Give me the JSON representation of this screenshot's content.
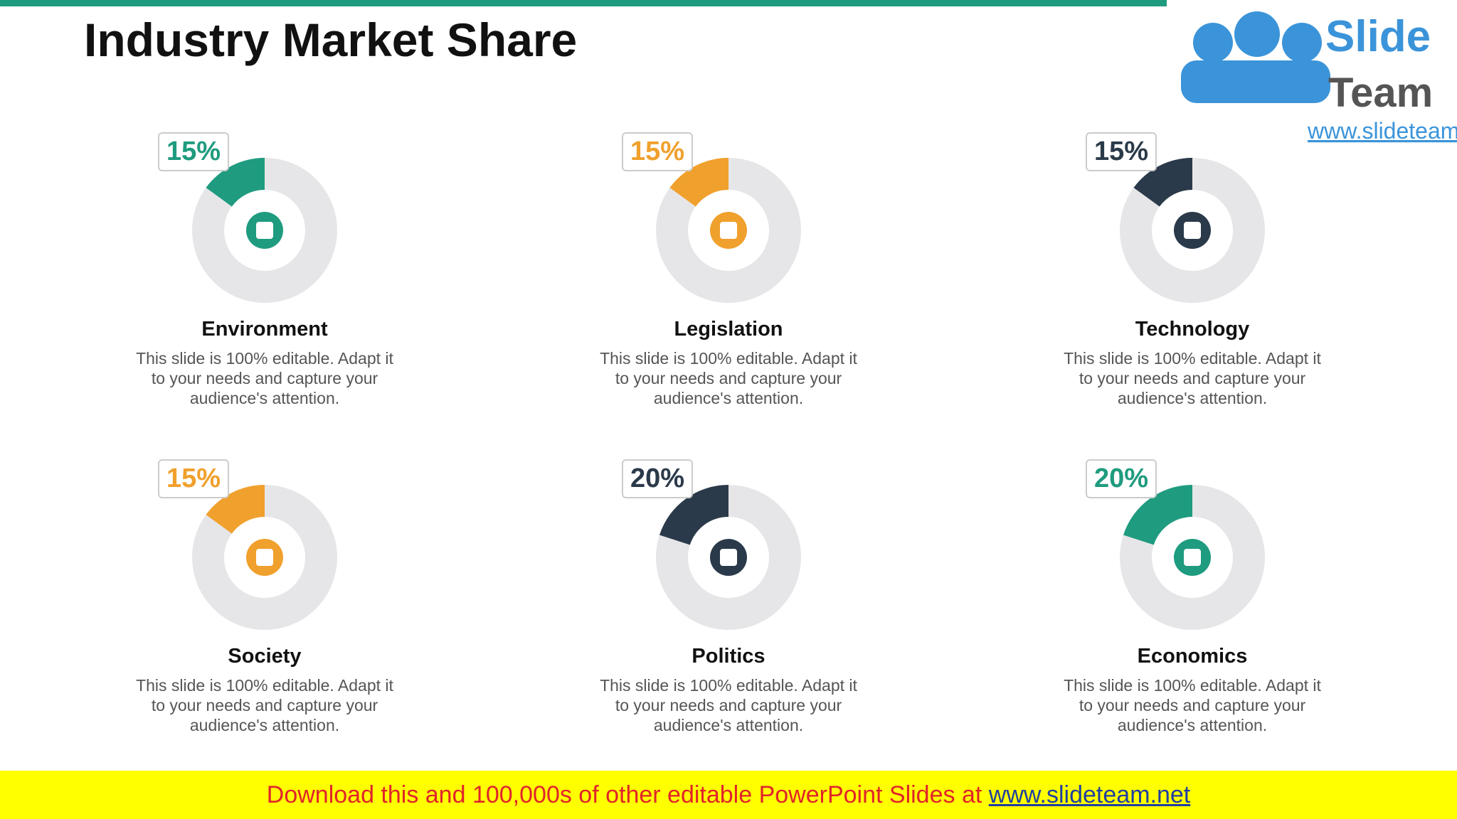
{
  "title": "Industry Market Share",
  "logo": {
    "brand_top": "Slide",
    "brand_bottom": "Team",
    "url": "www.slideteam.net"
  },
  "chart_data": [
    {
      "type": "donut",
      "title": "Environment",
      "values": [
        15
      ],
      "value_labels": [
        "15%"
      ],
      "color": "#1f9b7f",
      "ylim": [
        0,
        100
      ],
      "description": "This slide is 100% editable. Adapt it to your needs and capture your audience's attention."
    },
    {
      "type": "donut",
      "title": "Legislation",
      "values": [
        15
      ],
      "value_labels": [
        "15%"
      ],
      "color": "#f0a02c",
      "ylim": [
        0,
        100
      ],
      "description": "This slide is 100% editable. Adapt it to your needs and capture your audience's attention."
    },
    {
      "type": "donut",
      "title": "Technology",
      "values": [
        15
      ],
      "value_labels": [
        "15%"
      ],
      "color": "#2b3a4a",
      "ylim": [
        0,
        100
      ],
      "description": "This slide is 100% editable. Adapt it to your needs and capture your audience's attention."
    },
    {
      "type": "donut",
      "title": "Society",
      "values": [
        15
      ],
      "value_labels": [
        "15%"
      ],
      "color": "#f0a02c",
      "ylim": [
        0,
        100
      ],
      "description": "This slide is 100% editable. Adapt it to your needs and capture your audience's attention."
    },
    {
      "type": "donut",
      "title": "Politics",
      "values": [
        20
      ],
      "value_labels": [
        "20%"
      ],
      "color": "#2b3a4a",
      "ylim": [
        0,
        100
      ],
      "description": "This slide is 100% editable. Adapt it to your needs and capture your audience's attention."
    },
    {
      "type": "donut",
      "title": "Economics",
      "values": [
        20
      ],
      "value_labels": [
        "20%"
      ],
      "color": "#1f9b7f",
      "ylim": [
        0,
        100
      ],
      "description": "This slide is 100% editable. Adapt it to your needs and capture your audience's attention."
    }
  ],
  "footer": {
    "text": "Download this and 100,000s of other editable PowerPoint Slides at",
    "link": "www.slideteam.net"
  }
}
